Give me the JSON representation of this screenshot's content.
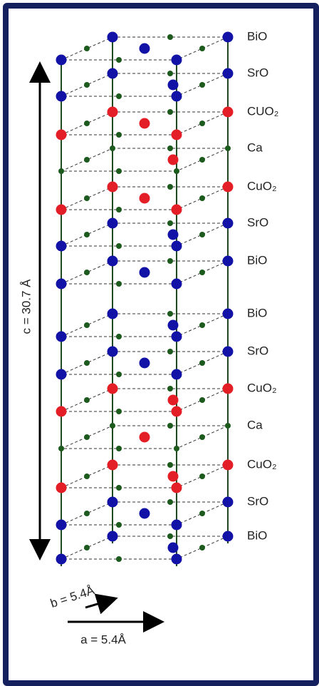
{
  "layers": [
    "BiO",
    "SrO",
    "CUO₂",
    "Ca",
    "CuO₂",
    "SrO",
    "BiO",
    "BiO",
    "SrO",
    "CuO₂",
    "Ca",
    "CuO₂",
    "SrO",
    "BiO"
  ],
  "c_label": "c = 30.7 Å",
  "b_label": "b = 5.4Å",
  "a_label": "a = 5.4Å"
}
